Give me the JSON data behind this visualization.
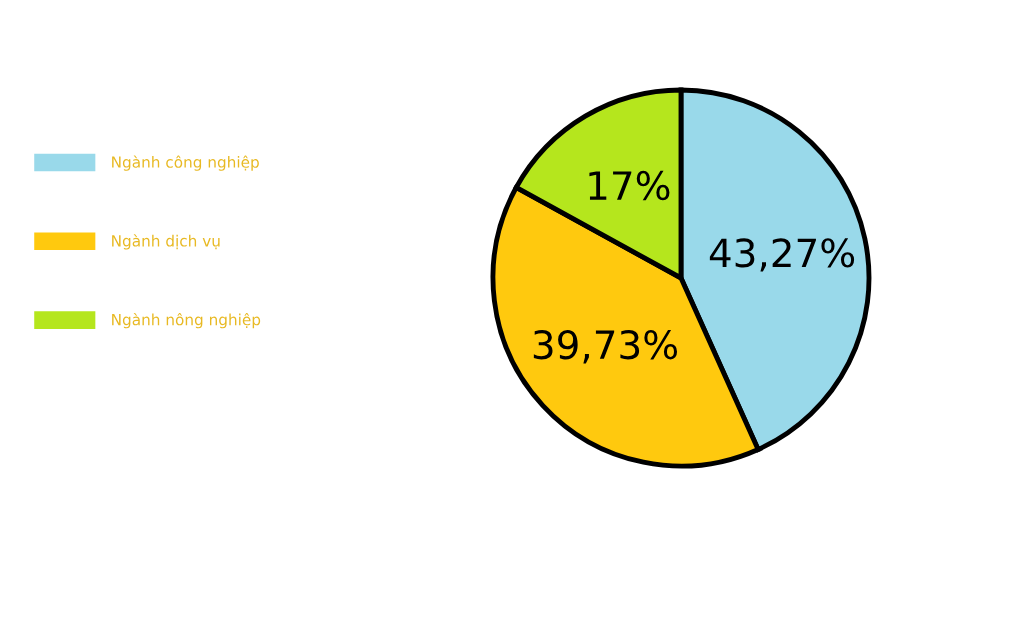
{
  "chart_data": {
    "type": "pie",
    "categories": [
      "Ngành công nghiệp",
      "Ngành dịch vụ",
      "Ngành nông nghiệp"
    ],
    "values": [
      43.27,
      39.73,
      17
    ],
    "value_labels": [
      "43,27%",
      "39,73%",
      "17%"
    ],
    "colors": [
      "#99d9ea",
      "#ffc90e",
      "#b5e61d"
    ],
    "legend": "left"
  }
}
